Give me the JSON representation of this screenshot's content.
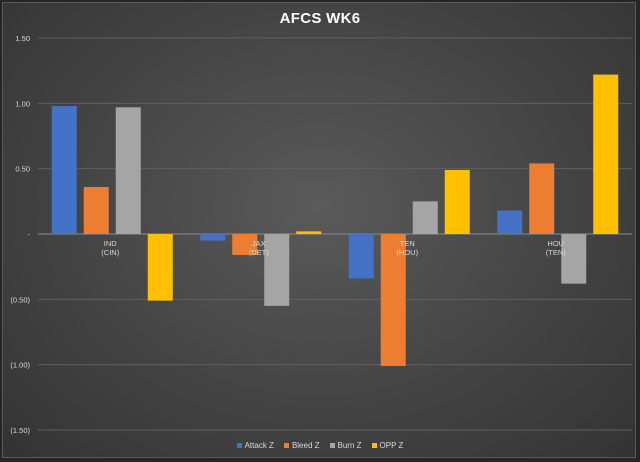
{
  "chart_data": {
    "type": "bar",
    "title": "AFCS WK6",
    "xlabel": "",
    "ylabel": "",
    "categories": [
      [
        "IND",
        "(CIN)"
      ],
      [
        "JAX",
        "(DET)"
      ],
      [
        "TEN",
        "(HOU)"
      ],
      [
        "HOU",
        "(TEN)"
      ]
    ],
    "series": [
      {
        "name": "Attack Z",
        "color": "#4472c4",
        "values": [
          0.98,
          -0.05,
          -0.34,
          0.18
        ]
      },
      {
        "name": "Bleed Z",
        "color": "#ed7d31",
        "values": [
          0.36,
          -0.16,
          -1.01,
          0.54
        ]
      },
      {
        "name": "Burn Z",
        "color": "#a5a5a5",
        "values": [
          0.97,
          -0.55,
          0.25,
          -0.38
        ]
      },
      {
        "name": "OPP Z",
        "color": "#ffc000",
        "values": [
          -0.51,
          0.02,
          0.49,
          1.22
        ]
      }
    ],
    "ylim": [
      -1.5,
      1.5
    ],
    "yticks": [
      1.5,
      1.0,
      0.5,
      0,
      -0.5,
      -1.0,
      -1.5
    ],
    "ytick_labels": [
      "1.50",
      "1.00",
      "0.50",
      "-",
      "(0.50)",
      "(1.00)",
      "(1.50)"
    ],
    "grid": true,
    "legend_position": "bottom"
  }
}
